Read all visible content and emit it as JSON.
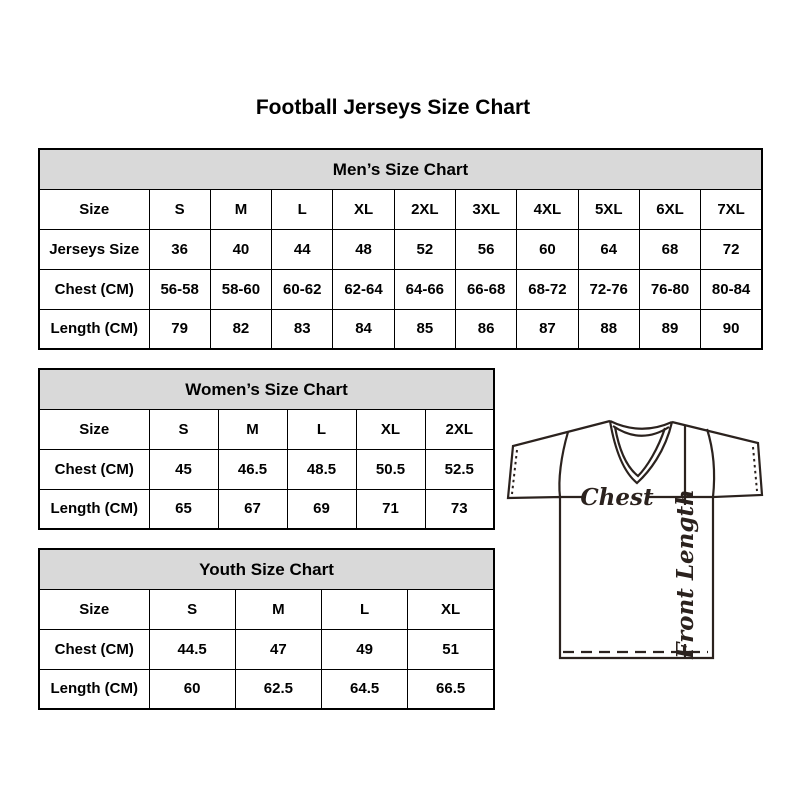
{
  "page": {
    "title": "Football Jerseys Size Chart"
  },
  "colors": {
    "table_header_bg": "#d9d9d9",
    "table_border": "#000000",
    "text": "#000000",
    "jersey_line": "#2b221e"
  },
  "tables": [
    {
      "title": "Men’s Size Chart",
      "size_label": "Size",
      "columns": [
        "S",
        "M",
        "L",
        "XL",
        "2XL",
        "3XL",
        "4XL",
        "5XL",
        "6XL",
        "7XL"
      ],
      "rows": [
        {
          "label": "Jerseys Size",
          "values": [
            "36",
            "40",
            "44",
            "48",
            "52",
            "56",
            "60",
            "64",
            "68",
            "72"
          ]
        },
        {
          "label": "Chest (CM)",
          "values": [
            "56-58",
            "58-60",
            "60-62",
            "62-64",
            "64-66",
            "66-68",
            "68-72",
            "72-76",
            "76-80",
            "80-84"
          ]
        },
        {
          "label": "Length (CM)",
          "values": [
            "79",
            "82",
            "83",
            "84",
            "85",
            "86",
            "87",
            "88",
            "89",
            "90"
          ]
        }
      ]
    },
    {
      "title": "Women’s Size Chart",
      "size_label": "Size",
      "columns": [
        "S",
        "M",
        "L",
        "XL",
        "2XL"
      ],
      "rows": [
        {
          "label": "Chest (CM)",
          "values": [
            "45",
            "46.5",
            "48.5",
            "50.5",
            "52.5"
          ]
        },
        {
          "label": "Length (CM)",
          "values": [
            "65",
            "67",
            "69",
            "71",
            "73"
          ]
        }
      ]
    },
    {
      "title": "Youth Size Chart",
      "size_label": "Size",
      "columns": [
        "S",
        "M",
        "L",
        "XL"
      ],
      "rows": [
        {
          "label": "Chest (CM)",
          "values": [
            "44.5",
            "47",
            "49",
            "51"
          ]
        },
        {
          "label": "Length (CM)",
          "values": [
            "60",
            "62.5",
            "64.5",
            "66.5"
          ]
        }
      ]
    }
  ],
  "jersey": {
    "chest_label": "Chest",
    "front_length_label": "Front Length"
  }
}
